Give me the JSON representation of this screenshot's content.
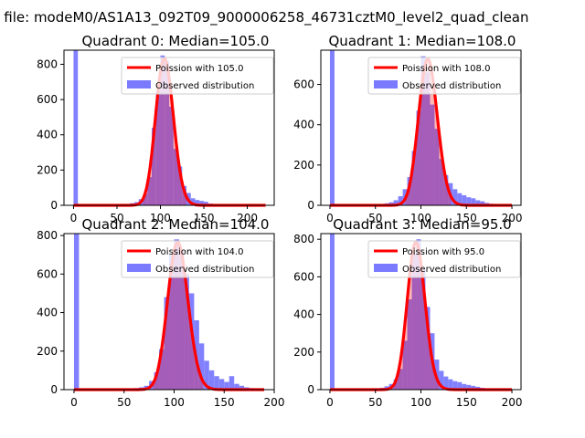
{
  "figure": {
    "suptitle": "n file: modeM0/AS1A13_092T09_9000006258_46731cztM0_level2_quad_clean"
  },
  "colors": {
    "poisson": "#ff0000",
    "observed": "#7a7aff",
    "background": "#ffffff"
  },
  "chart_data": [
    {
      "type": "bar",
      "title": "Quadrant 0: Median=105.0",
      "legend_placement": "upper right",
      "xlim": [
        -11,
        231
      ],
      "ylim": [
        0,
        880
      ],
      "xticks": [
        0,
        50,
        100,
        150,
        200
      ],
      "yticks": [
        0,
        200,
        400,
        600,
        800
      ],
      "xticklabels": [
        "0",
        "50",
        "100",
        "150",
        "200"
      ],
      "yticklabels": [
        "0",
        "200",
        "400",
        "600",
        "800"
      ],
      "poisson_mean": 105.0,
      "poisson_label": "Poission with 105.0",
      "observed_label": "Observed distribution",
      "bins": [
        0,
        5,
        50,
        55,
        60,
        65,
        70,
        75,
        80,
        85,
        90,
        95,
        100,
        105,
        110,
        115,
        120,
        125,
        130,
        135,
        140,
        145,
        150,
        155,
        160,
        165,
        170
      ],
      "counts": [
        1000,
        3,
        3,
        5,
        8,
        12,
        18,
        35,
        65,
        160,
        440,
        650,
        850,
        820,
        560,
        320,
        220,
        110,
        70,
        40,
        30,
        25,
        20,
        10,
        6,
        4,
        3
      ],
      "bin_width": 5
    },
    {
      "type": "bar",
      "title": "Quadrant 1: Median=108.0",
      "legend_placement": "upper right",
      "xlim": [
        -10,
        210
      ],
      "ylim": [
        0,
        770
      ],
      "xticks": [
        0,
        50,
        100,
        150,
        200
      ],
      "yticks": [
        0,
        200,
        400,
        600
      ],
      "xticklabels": [
        "0",
        "50",
        "100",
        "150",
        "200"
      ],
      "yticklabels": [
        "0",
        "200",
        "400",
        "600"
      ],
      "poisson_mean": 108.0,
      "poisson_label": "Poission with 108.0",
      "observed_label": "Observed distribution",
      "bins": [
        0,
        5,
        50,
        55,
        60,
        65,
        70,
        75,
        80,
        85,
        90,
        95,
        100,
        105,
        110,
        115,
        120,
        125,
        130,
        135,
        140,
        145,
        150,
        155,
        160,
        165,
        170,
        175
      ],
      "counts": [
        1000,
        3,
        4,
        6,
        10,
        15,
        25,
        45,
        80,
        140,
        270,
        470,
        740,
        660,
        500,
        380,
        230,
        150,
        110,
        80,
        60,
        50,
        40,
        35,
        25,
        20,
        12,
        8
      ],
      "bin_width": 5
    },
    {
      "type": "bar",
      "title": "Quadrant 2: Median=104.0",
      "legend_placement": "upper right",
      "xlim": [
        -10,
        200
      ],
      "ylim": [
        0,
        810
      ],
      "xticks": [
        0,
        50,
        100,
        150,
        200
      ],
      "yticks": [
        0,
        200,
        400,
        600,
        800
      ],
      "xticklabels": [
        "0",
        "50",
        "100",
        "150",
        "200"
      ],
      "yticklabels": [
        "0",
        "200",
        "400",
        "600",
        "800"
      ],
      "poisson_mean": 104.0,
      "poisson_label": "Poission with 104.0",
      "observed_label": "Observed distribution",
      "bins": [
        0,
        4,
        50,
        55,
        60,
        65,
        70,
        75,
        80,
        85,
        90,
        95,
        100,
        105,
        110,
        115,
        120,
        125,
        130,
        135,
        140,
        145,
        150,
        155,
        160,
        165,
        170,
        175,
        180,
        185
      ],
      "counts": [
        1000,
        3,
        3,
        5,
        8,
        12,
        20,
        45,
        90,
        210,
        480,
        700,
        780,
        720,
        600,
        500,
        360,
        240,
        150,
        100,
        70,
        55,
        40,
        70,
        30,
        20,
        12,
        8,
        6,
        4
      ],
      "bin_width": 5
    },
    {
      "type": "bar",
      "title": "Quadrant 3: Median=95.0",
      "legend_placement": "upper right",
      "xlim": [
        -10,
        210
      ],
      "ylim": [
        0,
        830
      ],
      "xticks": [
        0,
        50,
        100,
        150,
        200
      ],
      "yticks": [
        0,
        200,
        400,
        600,
        800
      ],
      "xticklabels": [
        "0",
        "50",
        "100",
        "150",
        "200"
      ],
      "yticklabels": [
        "0",
        "200",
        "400",
        "600",
        "800"
      ],
      "poisson_mean": 95.0,
      "poisson_label": "Poission with 95.0",
      "observed_label": "Observed distribution",
      "bins": [
        0,
        5,
        45,
        50,
        55,
        60,
        65,
        70,
        75,
        80,
        85,
        90,
        95,
        100,
        105,
        110,
        115,
        120,
        125,
        130,
        135,
        140,
        145,
        150,
        155,
        160,
        165,
        170,
        175
      ],
      "counts": [
        1000,
        3,
        3,
        5,
        10,
        18,
        30,
        55,
        110,
        260,
        480,
        720,
        800,
        640,
        440,
        300,
        160,
        100,
        70,
        55,
        45,
        40,
        30,
        25,
        20,
        15,
        10,
        6,
        4
      ],
      "bin_width": 5
    }
  ]
}
